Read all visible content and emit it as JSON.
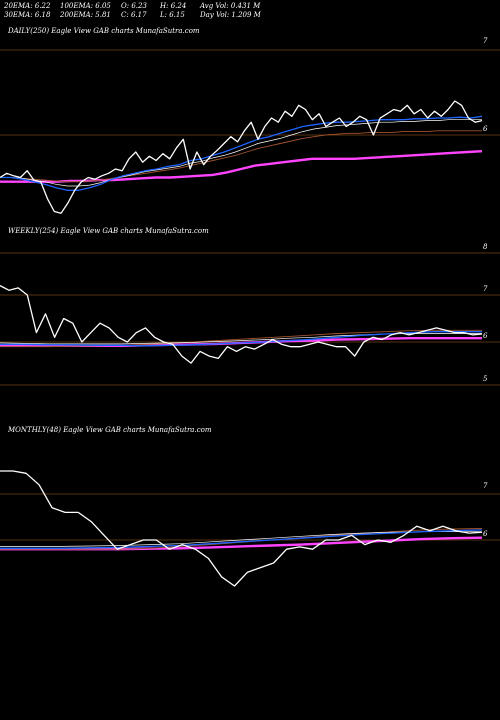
{
  "header": {
    "ema20": "20EMA: 6.22",
    "ema100": "100EMA: 6.05",
    "open": "O: 6.23",
    "high": "H: 6.24",
    "avg_vol": "Avg Vol: 0.431 M",
    "ema30": "30EMA: 6.18",
    "ema200": "200EMA: 5.81",
    "close": "C: 6.17",
    "low": "L: 6.15",
    "day_vol": "Day Vol: 1.209 M"
  },
  "colors": {
    "background": "#000000",
    "price": "#ffffff",
    "ema_fast": "#1e64ff",
    "ema_slow": "#ffffff",
    "ema_brown": "#a0522d",
    "ema_magenta": "#ff44ff",
    "gridline": "#b4641e"
  },
  "chart_data": [
    {
      "type": "line",
      "title": "DAILY(250) Eagle  View  GAB charts MunafaSutra.com",
      "yticks": [
        "7",
        "6"
      ],
      "ylim": [
        4.9,
        7.2
      ],
      "series": [
        {
          "values": [
            5.5,
            5.55,
            5.52,
            5.5,
            5.58,
            5.47,
            5.45,
            5.25,
            5.1,
            5.08,
            5.2,
            5.35,
            5.45,
            5.5,
            5.48,
            5.52,
            5.55,
            5.6,
            5.58,
            5.72,
            5.8,
            5.68,
            5.75,
            5.7,
            5.78,
            5.72,
            5.85,
            5.95,
            5.6,
            5.8,
            5.65,
            5.75,
            5.82,
            5.9,
            5.98,
            5.92,
            6.05,
            6.15,
            5.95,
            6.1,
            6.2,
            6.15,
            6.28,
            6.22,
            6.35,
            6.3,
            6.18,
            6.25,
            6.1,
            6.15,
            6.2,
            6.1,
            6.15,
            6.22,
            6.18,
            6.0,
            6.2,
            6.25,
            6.3,
            6.28,
            6.35,
            6.25,
            6.3,
            6.2,
            6.28,
            6.22,
            6.3,
            6.4,
            6.35,
            6.2,
            6.15,
            6.17
          ]
        },
        {
          "values": [
            5.5,
            5.5,
            5.48,
            5.45,
            5.42,
            5.38,
            5.35,
            5.35,
            5.38,
            5.42,
            5.48,
            5.52,
            5.55,
            5.58,
            5.6,
            5.63,
            5.65,
            5.7,
            5.72,
            5.76,
            5.8,
            5.85,
            5.9,
            5.95,
            5.98,
            6.02,
            6.06,
            6.1,
            6.12,
            6.14,
            6.15,
            6.15,
            6.16,
            6.17,
            6.18,
            6.18,
            6.18,
            6.19,
            6.19,
            6.2,
            6.2,
            6.21,
            6.2,
            6.22
          ]
        },
        {
          "values": [
            5.5,
            5.5,
            5.49,
            5.47,
            5.45,
            5.42,
            5.4,
            5.4,
            5.41,
            5.44,
            5.48,
            5.51,
            5.54,
            5.57,
            5.59,
            5.61,
            5.63,
            5.67,
            5.69,
            5.73,
            5.76,
            5.8,
            5.85,
            5.9,
            5.93,
            5.96,
            6.0,
            6.04,
            6.07,
            6.09,
            6.11,
            6.12,
            6.13,
            6.14,
            6.15,
            6.15,
            6.16,
            6.16,
            6.17,
            6.17,
            6.18,
            6.18,
            6.18,
            6.18
          ]
        },
        {
          "values": [
            5.5,
            5.5,
            5.49,
            5.48,
            5.47,
            5.46,
            5.45,
            5.45,
            5.46,
            5.47,
            5.49,
            5.51,
            5.53,
            5.55,
            5.57,
            5.59,
            5.61,
            5.64,
            5.67,
            5.7,
            5.73,
            5.76,
            5.8,
            5.84,
            5.87,
            5.9,
            5.93,
            5.96,
            5.98,
            6.0,
            6.01,
            6.02,
            6.02,
            6.03,
            6.03,
            6.03,
            6.04,
            6.04,
            6.04,
            6.05,
            6.05,
            6.05,
            6.05,
            6.05
          ]
        },
        {
          "values": [
            5.45,
            5.45,
            5.45,
            5.45,
            5.45,
            5.46,
            5.46,
            5.47,
            5.47,
            5.48,
            5.49,
            5.5,
            5.5,
            5.51,
            5.52,
            5.53,
            5.56,
            5.6,
            5.64,
            5.66,
            5.68,
            5.7,
            5.72,
            5.72,
            5.72,
            5.72,
            5.73,
            5.74,
            5.75,
            5.76,
            5.77,
            5.78,
            5.79,
            5.8,
            5.81
          ]
        }
      ]
    },
    {
      "type": "line",
      "title": "WEEKLY(254) Eagle  View  GAB charts MunafaSutra.com",
      "yticks": [
        "8",
        "7",
        "6",
        "5"
      ],
      "series": [
        {
          "values": [
            7.2,
            7.1,
            7.15,
            7.0,
            6.2,
            6.6,
            6.1,
            6.5,
            6.4,
            6.0,
            6.2,
            6.4,
            6.3,
            6.1,
            6.0,
            6.2,
            6.3,
            6.1,
            6.0,
            5.95,
            5.7,
            5.55,
            5.8,
            5.7,
            5.65,
            5.9,
            5.8,
            5.9,
            5.85,
            5.95,
            6.05,
            5.95,
            5.9,
            5.9,
            5.95,
            6.0,
            5.95,
            5.9,
            5.9,
            5.7,
            6.0,
            6.1,
            6.05,
            6.15,
            6.2,
            6.15,
            6.2,
            6.25,
            6.3,
            6.25,
            6.2,
            6.2,
            6.15,
            6.17
          ]
        },
        {
          "values": [
            5.95,
            5.95,
            5.94,
            5.94,
            5.93,
            5.93,
            5.92,
            5.93,
            5.94,
            5.96,
            5.98,
            6.0,
            6.03,
            6.06,
            6.1,
            6.14,
            6.17,
            6.2,
            6.22,
            6.22,
            6.22
          ]
        },
        {
          "values": [
            5.98,
            5.97,
            5.96,
            5.96,
            5.96,
            5.96,
            5.97,
            5.98,
            5.99,
            6.01,
            6.03,
            6.05,
            6.08,
            6.1,
            6.13,
            6.15,
            6.17,
            6.18,
            6.18,
            6.18,
            6.18
          ]
        },
        {
          "values": [
            5.9,
            5.9,
            5.9,
            5.91,
            5.92,
            5.93,
            5.95,
            5.97,
            6.0,
            6.03,
            6.06,
            6.09,
            6.12,
            6.15,
            6.18,
            6.2,
            6.22,
            6.24,
            6.25,
            6.25,
            6.25
          ]
        },
        {
          "values": [
            5.92,
            5.92,
            5.92,
            5.92,
            5.92,
            5.92,
            5.93,
            5.94,
            5.95,
            5.96,
            5.98,
            6.0,
            6.02,
            6.03,
            6.05,
            6.06,
            6.07,
            6.08,
            6.08,
            6.08,
            6.08
          ]
        }
      ]
    },
    {
      "type": "line",
      "title": "MONTHLY(48) Eagle  View  GAB charts MunafaSutra.com",
      "yticks": [
        "7",
        "6"
      ],
      "series": [
        {
          "values": [
            7.5,
            7.5,
            7.45,
            7.2,
            6.7,
            6.6,
            6.6,
            6.4,
            6.1,
            5.8,
            5.9,
            6.0,
            6.0,
            5.8,
            5.9,
            5.8,
            5.6,
            5.2,
            5.0,
            5.3,
            5.4,
            5.5,
            5.8,
            5.85,
            5.8,
            6.0,
            6.0,
            6.1,
            5.9,
            6.0,
            5.95,
            6.1,
            6.3,
            6.2,
            6.3,
            6.2,
            6.15,
            6.17
          ]
        },
        {
          "values": [
            5.82,
            5.82,
            5.82,
            5.83,
            5.84,
            5.86,
            5.88,
            5.92,
            5.96,
            6.0,
            6.04,
            6.08,
            6.12,
            6.15,
            6.18,
            6.2,
            6.22
          ]
        },
        {
          "values": [
            5.86,
            5.86,
            5.86,
            5.87,
            5.88,
            5.9,
            5.92,
            5.96,
            6.0,
            6.04,
            6.08,
            6.12,
            6.15,
            6.17,
            6.18,
            6.18,
            6.18
          ]
        },
        {
          "values": [
            5.8,
            5.8,
            5.8,
            5.8,
            5.8,
            5.82,
            5.86,
            5.9,
            5.95,
            6.0,
            6.05,
            6.1,
            6.14,
            6.18,
            6.22,
            6.24,
            6.25
          ]
        },
        {
          "values": [
            5.8,
            5.8,
            5.8,
            5.8,
            5.8,
            5.81,
            5.82,
            5.84,
            5.86,
            5.88,
            5.9,
            5.93,
            5.96,
            5.99,
            6.02,
            6.04,
            6.05
          ]
        }
      ]
    }
  ]
}
